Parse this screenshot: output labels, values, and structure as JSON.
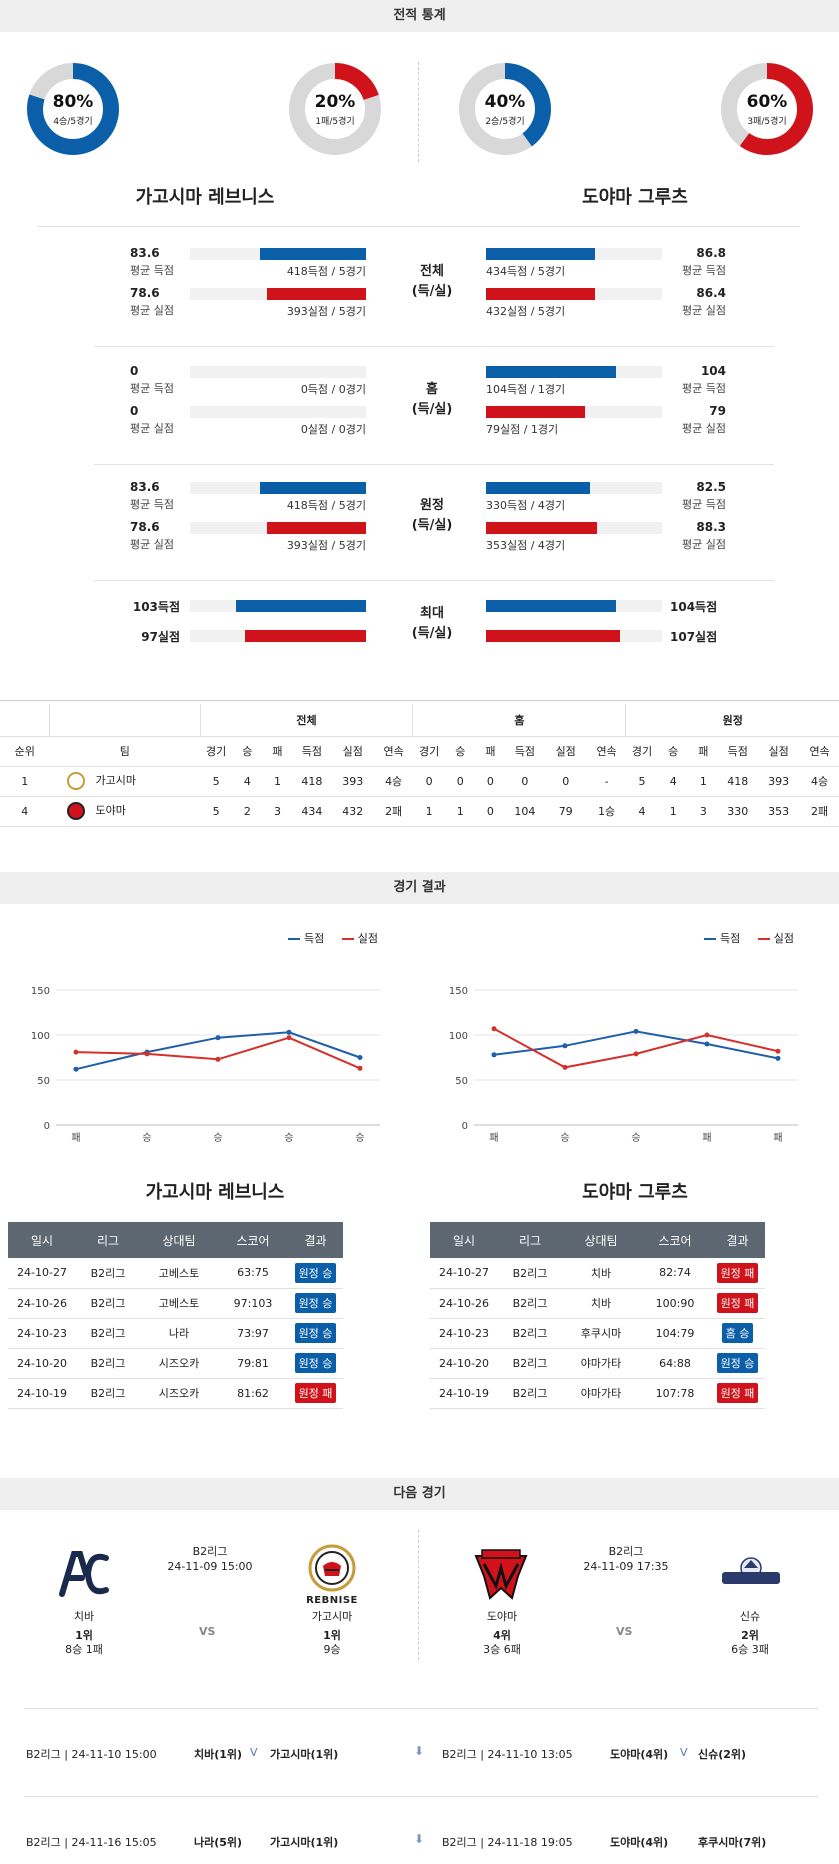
{
  "sections": {
    "stats": "전적 통계",
    "results": "경기 결과",
    "next": "다음 경기"
  },
  "donuts": [
    {
      "pct": "80%",
      "sub": "4승/5경기",
      "value": 0.8,
      "color": "#0b5fa8"
    },
    {
      "pct": "20%",
      "sub": "1패/5경기",
      "value": 0.2,
      "color": "#d0131b"
    },
    {
      "pct": "40%",
      "sub": "2승/5경기",
      "value": 0.4,
      "color": "#0b5fa8"
    },
    {
      "pct": "60%",
      "sub": "3패/5경기",
      "value": 0.6,
      "color": "#d0131b"
    }
  ],
  "teams": {
    "home": "가고시마 레브니스",
    "away": "도야마 그루츠"
  },
  "stat_groups": [
    {
      "center": [
        "전체",
        "(득/실)"
      ],
      "left": [
        {
          "value": "83.6",
          "label": "평균 득점",
          "bar_text": "418득점 / 5경기",
          "fill": 0.6
        },
        {
          "value": "78.6",
          "label": "평균 실점",
          "bar_text": "393실점 / 5경기",
          "fill": 0.56
        }
      ],
      "right": [
        {
          "value": "86.8",
          "label": "평균 득점",
          "bar_text": "434득점 / 5경기",
          "fill": 0.62
        },
        {
          "value": "86.4",
          "label": "평균 실점",
          "bar_text": "432실점 / 5경기",
          "fill": 0.62
        }
      ]
    },
    {
      "center": [
        "홈",
        "(득/실)"
      ],
      "left": [
        {
          "value": "0",
          "label": "평균 득점",
          "bar_text": "0득점 / 0경기",
          "fill": 0
        },
        {
          "value": "0",
          "label": "평균 실점",
          "bar_text": "0실점 / 0경기",
          "fill": 0
        }
      ],
      "right": [
        {
          "value": "104",
          "label": "평균 득점",
          "bar_text": "104득점 / 1경기",
          "fill": 0.74
        },
        {
          "value": "79",
          "label": "평균 실점",
          "bar_text": "79실점 / 1경기",
          "fill": 0.56
        }
      ]
    },
    {
      "center": [
        "원정",
        "(득/실)"
      ],
      "left": [
        {
          "value": "83.6",
          "label": "평균 득점",
          "bar_text": "418득점 / 5경기",
          "fill": 0.6
        },
        {
          "value": "78.6",
          "label": "평균 실점",
          "bar_text": "393실점 / 5경기",
          "fill": 0.56
        }
      ],
      "right": [
        {
          "value": "82.5",
          "label": "평균 득점",
          "bar_text": "330득점 / 4경기",
          "fill": 0.59
        },
        {
          "value": "88.3",
          "label": "평균 실점",
          "bar_text": "353실점 / 4경기",
          "fill": 0.63
        }
      ]
    }
  ],
  "max_group": {
    "center": [
      "최대",
      "(득/실)"
    ],
    "left": [
      {
        "value": "103득점",
        "fill": 0.74
      },
      {
        "value": "97실점",
        "fill": 0.69
      }
    ],
    "right": [
      {
        "value": "104득점",
        "fill": 0.74
      },
      {
        "value": "107실점",
        "fill": 0.76
      }
    ]
  },
  "standings": {
    "groups": [
      "전체",
      "홈",
      "원정"
    ],
    "headers": [
      "순위",
      "팀",
      "경기",
      "승",
      "패",
      "득점",
      "실점",
      "연속",
      "경기",
      "승",
      "패",
      "득점",
      "실점",
      "연속",
      "경기",
      "승",
      "패",
      "득점",
      "실점",
      "연속"
    ],
    "rows": [
      [
        "1",
        "가고시마",
        "5",
        "4",
        "1",
        "418",
        "393",
        "4승",
        "0",
        "0",
        "0",
        "0",
        "0",
        "-",
        "5",
        "4",
        "1",
        "418",
        "393",
        "4승"
      ],
      [
        "4",
        "도야마",
        "5",
        "2",
        "3",
        "434",
        "432",
        "2패",
        "1",
        "1",
        "0",
        "104",
        "79",
        "1승",
        "4",
        "1",
        "3",
        "330",
        "353",
        "2패"
      ]
    ]
  },
  "legend": {
    "scored": "득점",
    "conceded": "실점"
  },
  "chart_data": [
    {
      "type": "line",
      "categories": [
        "패",
        "승",
        "승",
        "승",
        "승"
      ],
      "ylim": [
        0,
        150
      ],
      "yticks": [
        0,
        50,
        100,
        150
      ],
      "series": [
        {
          "name": "득점",
          "color": "#1f5fa8",
          "values": [
            62,
            81,
            97,
            103,
            75
          ]
        },
        {
          "name": "실점",
          "color": "#d3312b",
          "values": [
            81,
            79,
            73,
            97,
            63
          ]
        }
      ]
    },
    {
      "type": "line",
      "categories": [
        "패",
        "승",
        "승",
        "패",
        "패"
      ],
      "ylim": [
        0,
        150
      ],
      "yticks": [
        0,
        50,
        100,
        150
      ],
      "series": [
        {
          "name": "득점",
          "color": "#1f5fa8",
          "values": [
            78,
            88,
            104,
            90,
            74
          ]
        },
        {
          "name": "실점",
          "color": "#d3312b",
          "values": [
            107,
            64,
            79,
            100,
            82
          ]
        }
      ]
    }
  ],
  "results_headers": [
    "일시",
    "리그",
    "상대팀",
    "스코어",
    "결과"
  ],
  "results_left": [
    {
      "date": "24-10-27",
      "league": "B2리그",
      "opp": "고베스토",
      "score": "63:75",
      "result": "원정 승",
      "color": "blue"
    },
    {
      "date": "24-10-26",
      "league": "B2리그",
      "opp": "고베스토",
      "score": "97:103",
      "result": "원정 승",
      "color": "blue"
    },
    {
      "date": "24-10-23",
      "league": "B2리그",
      "opp": "나라",
      "score": "73:97",
      "result": "원정 승",
      "color": "blue"
    },
    {
      "date": "24-10-20",
      "league": "B2리그",
      "opp": "시즈오카",
      "score": "79:81",
      "result": "원정 승",
      "color": "blue"
    },
    {
      "date": "24-10-19",
      "league": "B2리그",
      "opp": "시즈오카",
      "score": "81:62",
      "result": "원정 패",
      "color": "red"
    }
  ],
  "results_right": [
    {
      "date": "24-10-27",
      "league": "B2리그",
      "opp": "치바",
      "score": "82:74",
      "result": "원정 패",
      "color": "red"
    },
    {
      "date": "24-10-26",
      "league": "B2리그",
      "opp": "치바",
      "score": "100:90",
      "result": "원정 패",
      "color": "red"
    },
    {
      "date": "24-10-23",
      "league": "B2리그",
      "opp": "후쿠시마",
      "score": "104:79",
      "result": "홈 승",
      "color": "blue"
    },
    {
      "date": "24-10-20",
      "league": "B2리그",
      "opp": "야마가타",
      "score": "64:88",
      "result": "원정 승",
      "color": "blue"
    },
    {
      "date": "24-10-19",
      "league": "B2리그",
      "opp": "야마가타",
      "score": "107:78",
      "result": "원정 패",
      "color": "red"
    }
  ],
  "next_games": [
    {
      "league": "B2리그",
      "datetime": "24-11-09 15:00",
      "vs": "VS",
      "team_a": {
        "name": "치바",
        "rank": "1위",
        "record": "8승 1패"
      },
      "team_b": {
        "name": "가고시마",
        "rank": "1위",
        "record": "9승",
        "logo_text": "REBNISE"
      }
    },
    {
      "league": "B2리그",
      "datetime": "24-11-09 17:35",
      "vs": "VS",
      "team_a": {
        "name": "도야마",
        "rank": "4위",
        "record": "3승 6패"
      },
      "team_b": {
        "name": "신슈",
        "rank": "2위",
        "record": "6승 3패"
      }
    }
  ],
  "schedule": [
    {
      "left_info": "B2리그 | 24-11-10 15:00",
      "left_t1": "치바(1위)",
      "left_mark": "V",
      "left_t2": "가고시마(1위)",
      "right_info": "B2리그 | 24-11-10 13:05",
      "right_t1": "도야마(4위)",
      "right_mark": "V",
      "right_t2": "신슈(2위)"
    },
    {
      "left_info": "B2리그 | 24-11-16 15:05",
      "left_t1": "나라(5위)",
      "left_mark": "",
      "left_t2": "가고시마(1위)",
      "right_info": "B2리그 | 24-11-18 19:05",
      "right_t1": "도야마(4위)",
      "right_mark": "",
      "right_t2": "후쿠시마(7위)"
    }
  ]
}
